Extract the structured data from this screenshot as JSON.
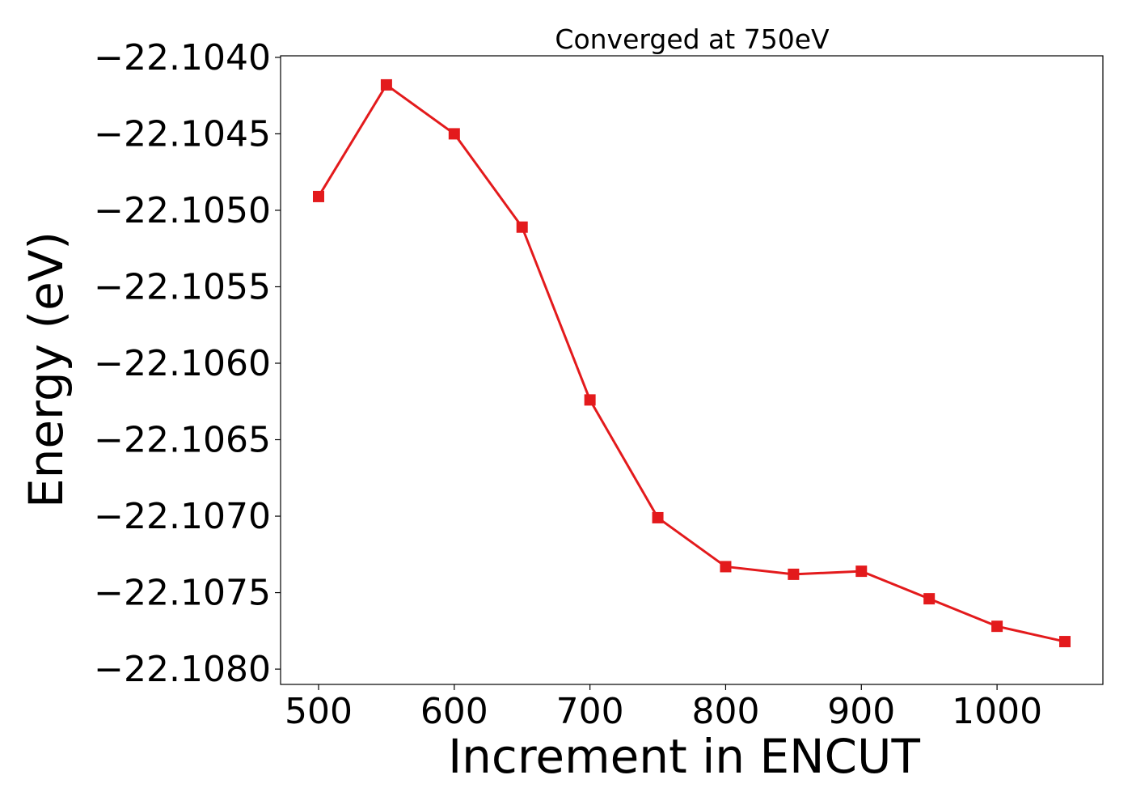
{
  "chart_data": {
    "type": "line",
    "title": "Converged at 750eV",
    "xlabel": "Increment in ENCUT",
    "ylabel": "Energy (eV)",
    "x": [
      500,
      550,
      600,
      650,
      700,
      750,
      800,
      850,
      900,
      950,
      1000,
      1050
    ],
    "series": [
      {
        "values": [
          -22.10491,
          -22.10418,
          -22.1045,
          -22.10511,
          -22.10624,
          -22.10701,
          -22.10733,
          -22.10738,
          -22.10736,
          -22.10754,
          -22.10772,
          -22.10782
        ],
        "color": "#e31a1c",
        "marker": "square"
      }
    ],
    "xticks": [
      500,
      600,
      700,
      800,
      900,
      1000
    ],
    "xtick_labels": [
      "500",
      "600",
      "700",
      "800",
      "900",
      "1000"
    ],
    "yticks": [
      -22.104,
      -22.1045,
      -22.105,
      -22.1055,
      -22.106,
      -22.1065,
      -22.107,
      -22.1075,
      -22.108
    ],
    "ytick_labels": [
      "−22.1040",
      "−22.1045",
      "−22.1050",
      "−22.1055",
      "−22.1060",
      "−22.1065",
      "−22.1070",
      "−22.1075",
      "−22.1080"
    ],
    "xlim": [
      472,
      1078
    ],
    "ylim": [
      -22.1081,
      -22.10399
    ],
    "grid": false,
    "legend": "none"
  }
}
